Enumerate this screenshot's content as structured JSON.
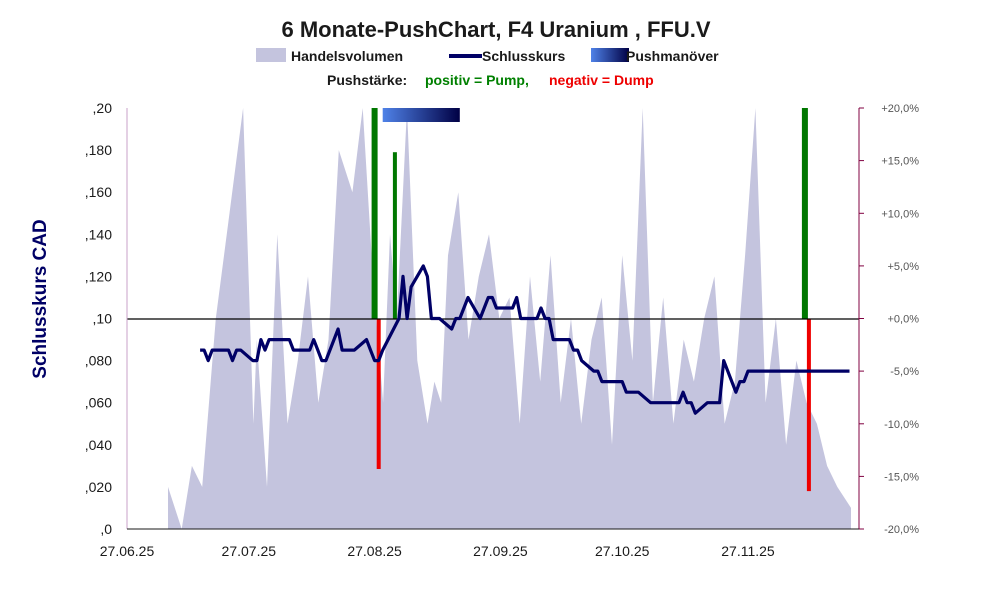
{
  "chart_data": {
    "type": "line",
    "title": "6 Monate-PushChart, F4 Uranium , FFU.V",
    "legend": {
      "position": "top",
      "items": [
        "Handelsvolumen",
        "Schlusskurs",
        "Pushmanöver"
      ]
    },
    "subtitle": {
      "label": "Pushstärke:",
      "positive": "positiv = Pump,",
      "negative": "negativ = Dump"
    },
    "ylabel": "Schlusskurs CAD",
    "xlabel": "",
    "ylim": [
      0,
      0.2
    ],
    "y_ticks": [
      ",0",
      ",020",
      ",040",
      ",060",
      ",080",
      ",10",
      ",120",
      ",140",
      ",160",
      ",180",
      ",20"
    ],
    "y2lim": [
      -20,
      20
    ],
    "y2_ticks": [
      "-20,0%",
      "-15,0%",
      "-10,0%",
      "-5,0%",
      "+0,0%",
      "+5,0%",
      "+10,0%",
      "+15,0%",
      "+20,0%"
    ],
    "x_ticks": [
      "27.06.25",
      "27.07.25",
      "27.08.25",
      "27.09.25",
      "27.10.25",
      "27.11.25"
    ],
    "x_start": "2025-06-27",
    "grid": false,
    "colors": {
      "volume": "#c4c4de",
      "price": "#000066",
      "pump": "#007700",
      "dump": "#ee0000",
      "push_start": "#4f82e8",
      "push_end": "#000044",
      "y2_axis": "#800040"
    },
    "series": [
      {
        "name": "Schlusskurs",
        "dates": [
          "2025-07-15",
          "2025-07-16",
          "2025-07-17",
          "2025-07-18",
          "2025-07-21",
          "2025-07-22",
          "2025-07-23",
          "2025-07-24",
          "2025-07-25",
          "2025-07-28",
          "2025-07-29",
          "2025-07-30",
          "2025-07-31",
          "2025-08-01",
          "2025-08-05",
          "2025-08-06",
          "2025-08-07",
          "2025-08-08",
          "2025-08-11",
          "2025-08-12",
          "2025-08-13",
          "2025-08-14",
          "2025-08-15",
          "2025-08-18",
          "2025-08-19",
          "2025-08-20",
          "2025-08-21",
          "2025-08-22",
          "2025-08-25",
          "2025-08-26",
          "2025-08-27",
          "2025-08-28",
          "2025-08-29",
          "2025-09-02",
          "2025-09-03",
          "2025-09-04",
          "2025-09-05",
          "2025-09-08",
          "2025-09-09",
          "2025-09-10",
          "2025-09-11",
          "2025-09-12",
          "2025-09-15",
          "2025-09-16",
          "2025-09-17",
          "2025-09-18",
          "2025-09-19",
          "2025-09-22",
          "2025-09-23",
          "2025-09-24",
          "2025-09-25",
          "2025-09-26",
          "2025-09-29",
          "2025-09-30",
          "2025-10-01",
          "2025-10-02",
          "2025-10-03",
          "2025-10-06",
          "2025-10-07",
          "2025-10-08",
          "2025-10-09",
          "2025-10-10",
          "2025-10-14",
          "2025-10-15",
          "2025-10-16",
          "2025-10-17",
          "2025-10-20",
          "2025-10-21",
          "2025-10-22",
          "2025-10-23",
          "2025-10-24",
          "2025-10-27",
          "2025-10-28",
          "2025-10-29",
          "2025-10-30",
          "2025-10-31",
          "2025-11-03",
          "2025-11-04",
          "2025-11-05",
          "2025-11-06",
          "2025-11-07",
          "2025-11-10",
          "2025-11-11",
          "2025-11-12",
          "2025-11-13",
          "2025-11-14",
          "2025-11-17",
          "2025-11-18",
          "2025-11-19",
          "2025-11-20",
          "2025-11-21",
          "2025-11-24",
          "2025-11-25",
          "2025-11-26",
          "2025-11-27",
          "2025-11-28",
          "2025-12-01",
          "2025-12-02",
          "2025-12-03",
          "2025-12-04",
          "2025-12-05",
          "2025-12-08",
          "2025-12-09",
          "2025-12-10",
          "2025-12-11",
          "2025-12-12",
          "2025-12-15",
          "2025-12-16",
          "2025-12-17",
          "2025-12-18",
          "2025-12-19",
          "2025-12-22",
          "2025-12-23",
          "2025-12-24"
        ],
        "values": [
          0.085,
          0.085,
          0.08,
          0.085,
          0.085,
          0.085,
          0.08,
          0.085,
          0.085,
          0.08,
          0.08,
          0.09,
          0.085,
          0.09,
          0.09,
          0.09,
          0.085,
          0.085,
          0.085,
          0.09,
          0.085,
          0.08,
          0.08,
          0.095,
          0.085,
          0.085,
          0.085,
          0.085,
          0.09,
          0.085,
          0.08,
          0.08,
          0.085,
          0.1,
          0.12,
          0.1,
          0.115,
          0.125,
          0.12,
          0.1,
          0.1,
          0.1,
          0.095,
          0.1,
          0.1,
          0.105,
          0.11,
          0.1,
          0.105,
          0.11,
          0.11,
          0.105,
          0.105,
          0.105,
          0.11,
          0.1,
          0.1,
          0.1,
          0.105,
          0.1,
          0.1,
          0.09,
          0.09,
          0.085,
          0.085,
          0.08,
          0.075,
          0.075,
          0.07,
          0.07,
          0.07,
          0.07,
          0.065,
          0.065,
          0.065,
          0.065,
          0.06,
          0.06,
          0.06,
          0.06,
          0.06,
          0.06,
          0.065,
          0.06,
          0.06,
          0.055,
          0.06,
          0.06,
          0.06,
          0.06,
          0.08,
          0.065,
          0.07,
          0.07,
          0.075,
          0.075,
          0.075,
          0.075,
          0.075,
          0.075,
          0.075,
          0.075,
          0.075,
          0.075,
          0.075,
          0.075,
          0.075,
          0.075,
          0.075,
          0.075,
          0.075,
          0.075,
          0.075,
          0.075
        ],
        "trim_to_visible": true
      },
      {
        "name": "Handelsvolumen",
        "x_frac": [
          0.0,
          0.02,
          0.035,
          0.05,
          0.07,
          0.09,
          0.11,
          0.125,
          0.13,
          0.145,
          0.16,
          0.175,
          0.19,
          0.205,
          0.22,
          0.235,
          0.25,
          0.27,
          0.285,
          0.3,
          0.315,
          0.325,
          0.335,
          0.35,
          0.365,
          0.38,
          0.39,
          0.4,
          0.41,
          0.425,
          0.44,
          0.455,
          0.47,
          0.485,
          0.5,
          0.515,
          0.53,
          0.545,
          0.56,
          0.575,
          0.59,
          0.605,
          0.62,
          0.635,
          0.65,
          0.665,
          0.68,
          0.695,
          0.71,
          0.725,
          0.74,
          0.755,
          0.77,
          0.785,
          0.8,
          0.815,
          0.83,
          0.845,
          0.86,
          0.875,
          0.89,
          0.905,
          0.92,
          0.935,
          0.95,
          0.965,
          0.98,
          1.0
        ],
        "values": [
          0.02,
          0.0,
          0.03,
          0.02,
          0.1,
          0.15,
          0.2,
          0.05,
          0.09,
          0.02,
          0.14,
          0.05,
          0.08,
          0.12,
          0.06,
          0.09,
          0.18,
          0.16,
          0.2,
          0.12,
          0.06,
          0.14,
          0.1,
          0.2,
          0.08,
          0.05,
          0.07,
          0.06,
          0.13,
          0.16,
          0.09,
          0.12,
          0.14,
          0.1,
          0.11,
          0.05,
          0.12,
          0.07,
          0.13,
          0.06,
          0.1,
          0.05,
          0.09,
          0.11,
          0.04,
          0.13,
          0.08,
          0.2,
          0.06,
          0.11,
          0.05,
          0.09,
          0.07,
          0.1,
          0.12,
          0.05,
          0.07,
          0.13,
          0.2,
          0.06,
          0.1,
          0.04,
          0.08,
          0.06,
          0.05,
          0.03,
          0.02,
          0.01
        ],
        "trim_to_visible": true
      }
    ],
    "push_bars": [
      {
        "date": "2025-08-27",
        "kind": "pump",
        "value": 20.0
      },
      {
        "date": "2025-08-28",
        "kind": "dump",
        "value": -14.3
      },
      {
        "date": "2025-09-01",
        "kind": "pump",
        "value": 15.8
      },
      {
        "date": "2025-12-11",
        "kind": "pump",
        "value": 20.0
      },
      {
        "date": "2025-12-12",
        "kind": "dump",
        "value": -16.4
      }
    ],
    "push_period": {
      "start": "2025-08-29",
      "end": "2025-09-17"
    }
  }
}
